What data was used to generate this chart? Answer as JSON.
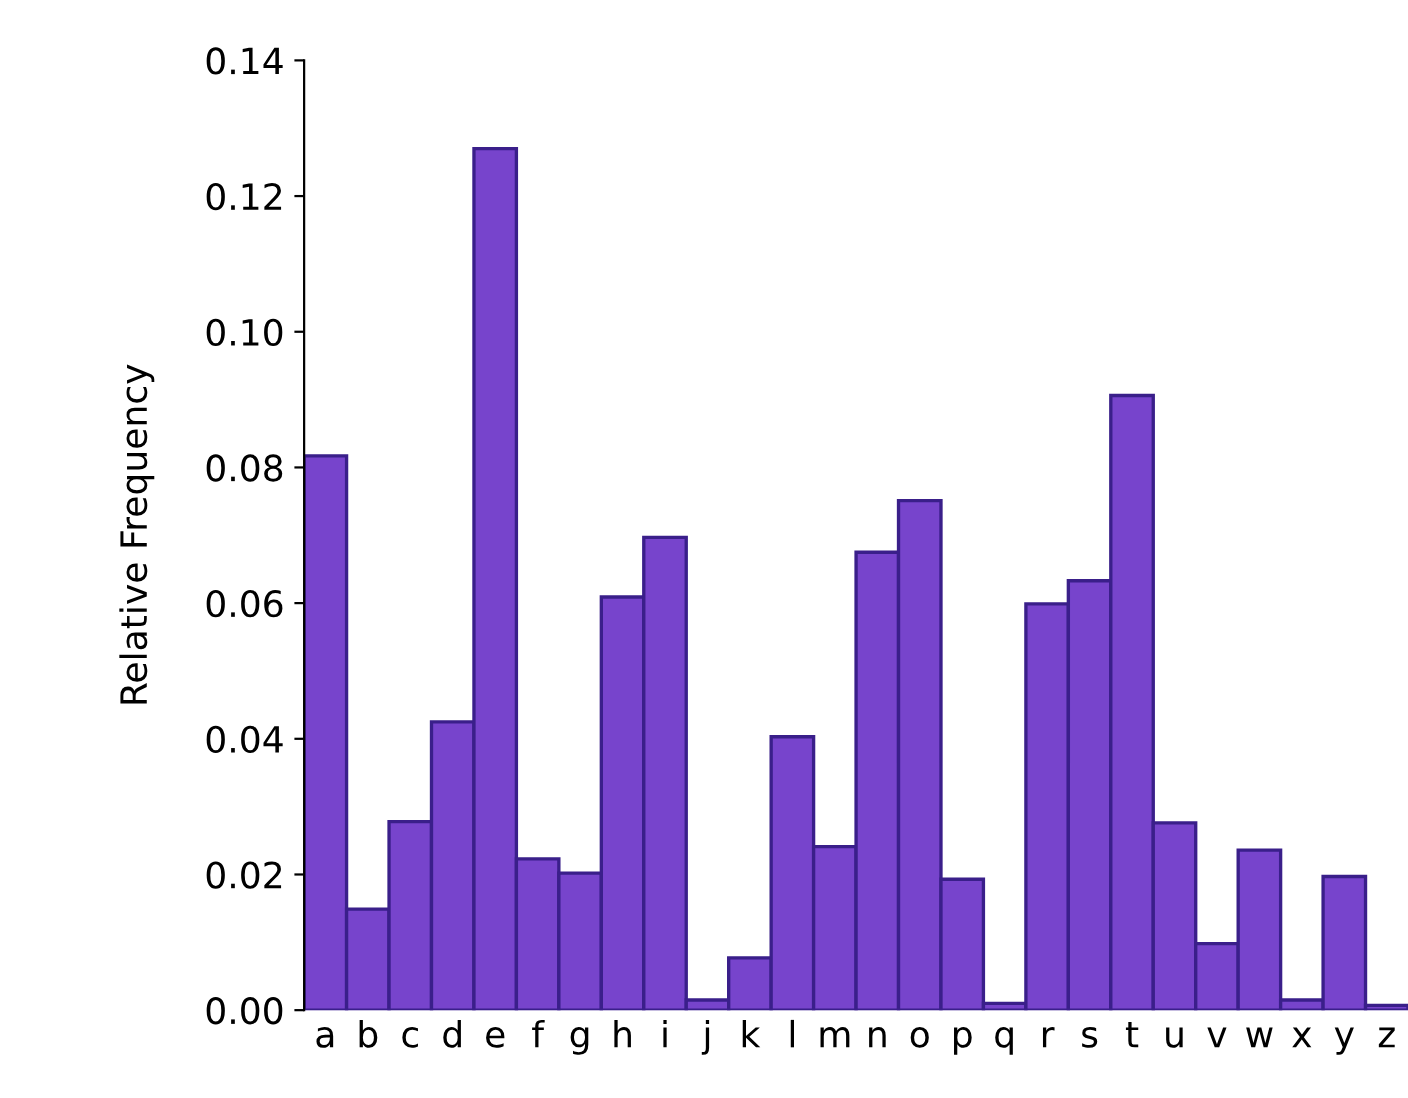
{
  "chart_data": {
    "type": "bar",
    "ylabel": "Relative Frequency",
    "categories": [
      "a",
      "b",
      "c",
      "d",
      "e",
      "f",
      "g",
      "h",
      "i",
      "j",
      "k",
      "l",
      "m",
      "n",
      "o",
      "p",
      "q",
      "r",
      "s",
      "t",
      "u",
      "v",
      "w",
      "x",
      "y",
      "z"
    ],
    "values": [
      0.0817,
      0.0149,
      0.0278,
      0.0425,
      0.127,
      0.0223,
      0.0202,
      0.0609,
      0.0697,
      0.0015,
      0.0077,
      0.0403,
      0.0241,
      0.0675,
      0.0751,
      0.0193,
      0.001,
      0.0599,
      0.0633,
      0.0906,
      0.0276,
      0.0098,
      0.0236,
      0.0015,
      0.0197,
      0.0007
    ],
    "color": "#7744cc",
    "ylim": [
      0,
      0.14
    ],
    "yticks": [
      {
        "value": 0,
        "label": "0.00"
      },
      {
        "value": 0.02,
        "label": "0.02"
      },
      {
        "value": 0.04,
        "label": "0.04"
      },
      {
        "value": 0.06,
        "label": "0.06"
      },
      {
        "value": 0.08,
        "label": "0.08"
      },
      {
        "value": 0.1,
        "label": "0.10"
      },
      {
        "value": 0.12,
        "label": "0.12"
      },
      {
        "value": 0.14,
        "label": "0.14"
      }
    ],
    "grid": false
  }
}
